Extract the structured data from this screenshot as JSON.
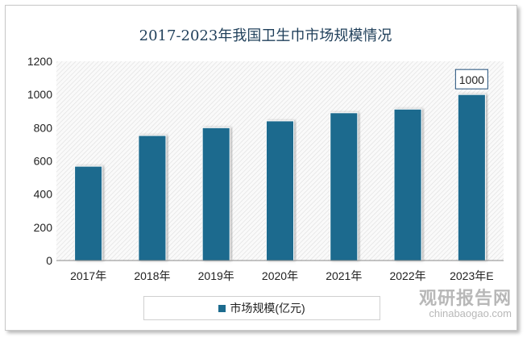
{
  "chart_data": {
    "type": "bar",
    "title": "2017-2023年我国卫生巾市场规模情况",
    "categories": [
      "2017年",
      "2018年",
      "2019年",
      "2020年",
      "2021年",
      "2022年",
      "2023年E"
    ],
    "series": [
      {
        "name": "市场规模(亿元)",
        "values": [
          568,
          753,
          800,
          841,
          890,
          912,
          1000
        ],
        "color": "#1c6b8e"
      }
    ],
    "data_labels": [
      {
        "category": "2023年E",
        "text": "1000"
      }
    ],
    "ylim": [
      0,
      1200
    ],
    "yticks": [
      "0",
      "200",
      "400",
      "600",
      "800",
      "1000",
      "1200"
    ],
    "grid": false,
    "background": "diagonal hatch",
    "legend": "bottom"
  },
  "watermark": {
    "name": "观研报告网",
    "url": "chinabaogao.com"
  }
}
